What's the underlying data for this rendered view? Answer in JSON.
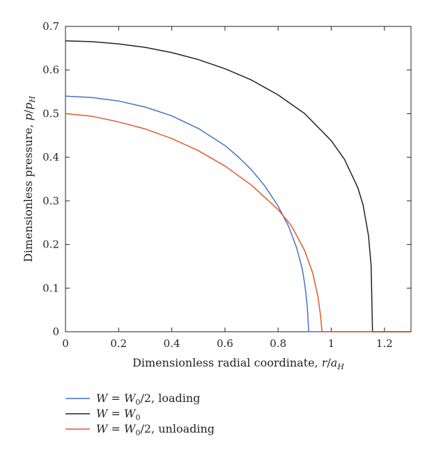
{
  "chart_data": {
    "type": "line",
    "title": "",
    "xlabel": {
      "main": "Dimensionless radial coordinate, ",
      "var": "r",
      "slash": "/",
      "den": "a",
      "den_sub": "H"
    },
    "ylabel": {
      "main": "Dimensionless pressure, ",
      "var": "p",
      "slash": "/",
      "den": "p",
      "den_sub": "H"
    },
    "xlim": [
      0,
      1.3
    ],
    "ylim": [
      0,
      0.7
    ],
    "xticks": [
      0,
      0.2,
      0.4,
      0.6,
      0.8,
      1,
      1.2
    ],
    "xtick_labels": [
      "0",
      "0.2",
      "0.4",
      "0.6",
      "0.8",
      "1",
      "1.2"
    ],
    "yticks": [
      0,
      0.1,
      0.2,
      0.3,
      0.4,
      0.5,
      0.6,
      0.7
    ],
    "ytick_labels": [
      "0",
      "0.1",
      "0.2",
      "0.3",
      "0.4",
      "0.5",
      "0.6",
      "0.7"
    ],
    "grid": false,
    "legend_position": "below",
    "series": [
      {
        "legend": {
          "lhs": "W",
          "eq": " = ",
          "rhs": "W",
          "rhs_sub": "0",
          "tail": "/2, loading"
        },
        "color": "#4472c4",
        "x": [
          0,
          0.1,
          0.2,
          0.3,
          0.4,
          0.5,
          0.6,
          0.65,
          0.7,
          0.75,
          0.8,
          0.84,
          0.87,
          0.89,
          0.9,
          0.905,
          0.91,
          0.915,
          1.3
        ],
        "y": [
          0.54,
          0.537,
          0.529,
          0.515,
          0.495,
          0.466,
          0.427,
          0.401,
          0.371,
          0.334,
          0.288,
          0.241,
          0.192,
          0.146,
          0.11,
          0.085,
          0.055,
          0.0,
          0.0
        ]
      },
      {
        "legend": {
          "lhs": "W",
          "eq": " = ",
          "rhs": "W",
          "rhs_sub": "0",
          "tail": ""
        },
        "color": "#231f20",
        "x": [
          0,
          0.1,
          0.2,
          0.3,
          0.4,
          0.5,
          0.6,
          0.7,
          0.8,
          0.9,
          1.0,
          1.05,
          1.1,
          1.12,
          1.14,
          1.15,
          1.155,
          1.3
        ],
        "y": [
          0.667,
          0.665,
          0.66,
          0.652,
          0.64,
          0.624,
          0.603,
          0.577,
          0.543,
          0.5,
          0.438,
          0.395,
          0.33,
          0.29,
          0.22,
          0.15,
          0.0,
          0.0
        ]
      },
      {
        "legend": {
          "lhs": "W",
          "eq": " = ",
          "rhs": "W",
          "rhs_sub": "0",
          "tail": "/2, unloading"
        },
        "color": "#e5562b",
        "x": [
          0,
          0.1,
          0.2,
          0.3,
          0.4,
          0.5,
          0.6,
          0.7,
          0.8,
          0.85,
          0.9,
          0.93,
          0.95,
          0.96,
          0.965,
          1.3
        ],
        "y": [
          0.5,
          0.494,
          0.481,
          0.465,
          0.443,
          0.415,
          0.38,
          0.336,
          0.28,
          0.243,
          0.186,
          0.135,
          0.08,
          0.035,
          0.0,
          0.0
        ]
      }
    ]
  }
}
